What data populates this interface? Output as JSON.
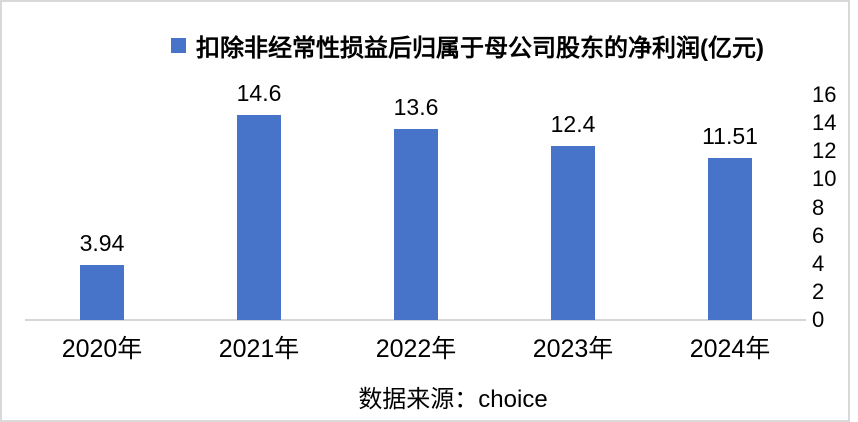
{
  "chart_data": {
    "type": "bar",
    "title": "扣除非经常性损益后归属于母公司股东的净利润(亿元)",
    "legend_position": "top",
    "categories": [
      "2020年",
      "2021年",
      "2022年",
      "2023年",
      "2024年"
    ],
    "values": [
      3.94,
      14.6,
      13.6,
      12.4,
      11.51
    ],
    "value_labels": [
      "3.94",
      "14.6",
      "13.6",
      "12.4",
      "11.51"
    ],
    "xlabel": "",
    "ylabel": "",
    "ylim": [
      0,
      16
    ],
    "y_ticks": [
      0,
      2,
      4,
      6,
      8,
      10,
      12,
      14,
      16
    ],
    "y_axis_side": "right",
    "grid": false,
    "bar_color": "#4774c9",
    "axis_line_color": "#d6d6d6",
    "frame_border_color": "#d9d9d9",
    "source": "数据来源：choice"
  }
}
